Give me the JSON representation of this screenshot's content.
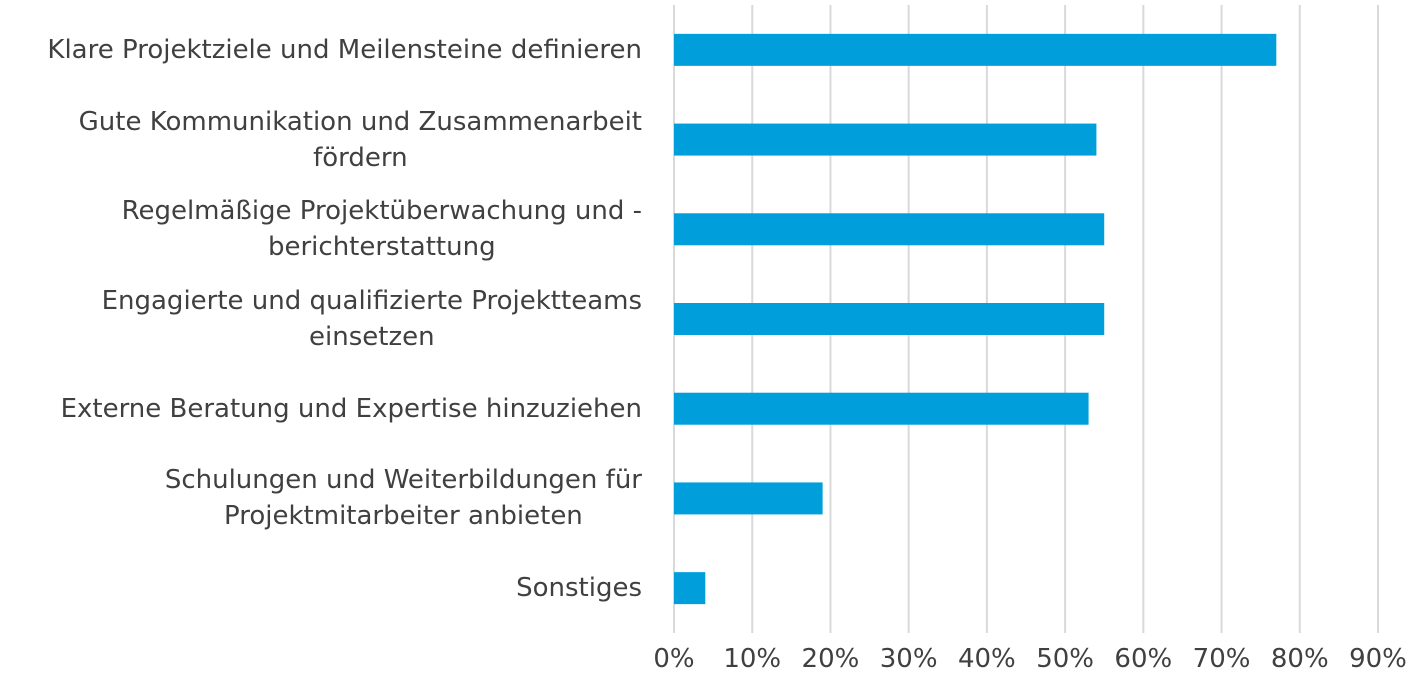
{
  "chart_data": {
    "type": "bar",
    "orientation": "horizontal",
    "categories": [
      "Klare Projektziele und Meilensteine definieren",
      "Gute Kommunikation und Zusammenarbeit\nfördern",
      "Regelmäßige Projektüberwachung und -\nberichterstattung",
      "Engagierte und qualifizierte Projektteams\neinsetzen",
      "Externe Beratung und Expertise hinzuziehen",
      "Schulungen und Weiterbildungen für\nProjektmitarbeiter anbieten",
      "Sonstiges"
    ],
    "values": [
      77,
      54,
      55,
      55,
      53,
      19,
      4
    ],
    "color": "#009fdb",
    "xlim": [
      0,
      90
    ],
    "xticks": [
      {
        "value": 0,
        "label": "0%"
      },
      {
        "value": 10,
        "label": "10%"
      },
      {
        "value": 20,
        "label": "20%"
      },
      {
        "value": 30,
        "label": "30%"
      },
      {
        "value": 40,
        "label": "40%"
      },
      {
        "value": 50,
        "label": "50%"
      },
      {
        "value": 60,
        "label": "60%"
      },
      {
        "value": 70,
        "label": "70%"
      },
      {
        "value": 80,
        "label": "80%"
      },
      {
        "value": 90,
        "label": "90%"
      }
    ],
    "grid": true
  }
}
